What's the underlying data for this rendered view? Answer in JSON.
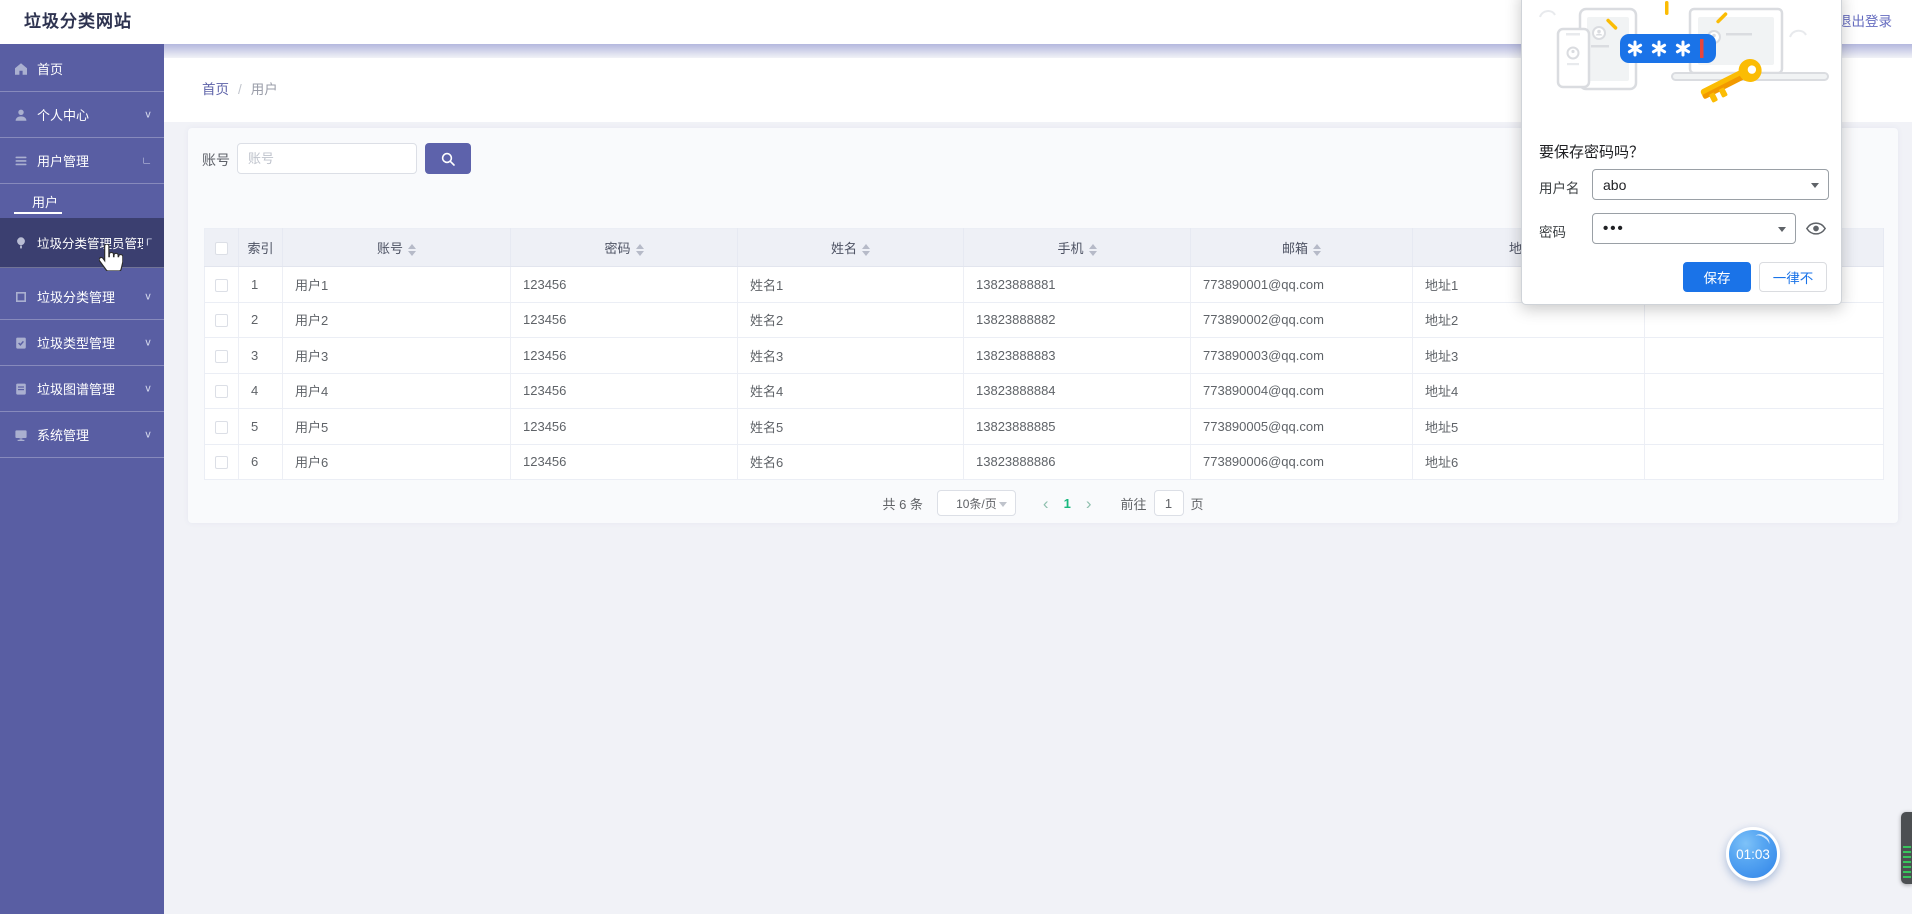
{
  "app": {
    "title": "垃圾分类网站",
    "logout_label": "退出登录"
  },
  "sidebar": {
    "items": [
      {
        "label": "首页",
        "icon": "home-icon"
      },
      {
        "label": "个人中心",
        "icon": "user-icon",
        "chevron": "∨"
      },
      {
        "label": "用户管理",
        "icon": "menu-icon",
        "chevron": "∟"
      },
      {
        "label": "用户",
        "sub": true,
        "active_sub": true
      },
      {
        "label": "垃圾分类管理员管理",
        "icon": "lamp-icon",
        "chevron": "Γ",
        "highlight": true
      },
      {
        "label": "垃圾分类管理",
        "icon": "square-icon",
        "chevron": "∨"
      },
      {
        "label": "垃圾类型管理",
        "icon": "clipcheck-icon",
        "chevron": "∨"
      },
      {
        "label": "垃圾图谱管理",
        "icon": "clipboard-icon",
        "chevron": "∨"
      },
      {
        "label": "系统管理",
        "icon": "monitor-icon",
        "chevron": "∨"
      }
    ]
  },
  "breadcrumb": {
    "items": [
      "首页",
      "用户"
    ],
    "separator": "/"
  },
  "search": {
    "label": "账号",
    "placeholder": "账号"
  },
  "table": {
    "columns": [
      {
        "key": "index",
        "label": "索引",
        "sortable": false
      },
      {
        "key": "account",
        "label": "账号",
        "sortable": true
      },
      {
        "key": "password",
        "label": "密码",
        "sortable": true
      },
      {
        "key": "name",
        "label": "姓名",
        "sortable": true
      },
      {
        "key": "phone",
        "label": "手机",
        "sortable": true
      },
      {
        "key": "email",
        "label": "邮箱",
        "sortable": true
      },
      {
        "key": "address",
        "label": "地址",
        "sortable": true
      },
      {
        "key": "extra",
        "label": "",
        "sortable": false
      }
    ],
    "rows": [
      {
        "index": "1",
        "account": "用户1",
        "password": "123456",
        "name": "姓名1",
        "phone": "13823888881",
        "email": "773890001@qq.com",
        "address": "地址1",
        "extra": ""
      },
      {
        "index": "2",
        "account": "用户2",
        "password": "123456",
        "name": "姓名2",
        "phone": "13823888882",
        "email": "773890002@qq.com",
        "address": "地址2",
        "extra": ""
      },
      {
        "index": "3",
        "account": "用户3",
        "password": "123456",
        "name": "姓名3",
        "phone": "13823888883",
        "email": "773890003@qq.com",
        "address": "地址3",
        "extra": ""
      },
      {
        "index": "4",
        "account": "用户4",
        "password": "123456",
        "name": "姓名4",
        "phone": "13823888884",
        "email": "773890004@qq.com",
        "address": "地址4",
        "extra": ""
      },
      {
        "index": "5",
        "account": "用户5",
        "password": "123456",
        "name": "姓名5",
        "phone": "13823888885",
        "email": "773890005@qq.com",
        "address": "地址5",
        "extra": ""
      },
      {
        "index": "6",
        "account": "用户6",
        "password": "123456",
        "name": "姓名6",
        "phone": "13823888886",
        "email": "773890006@qq.com",
        "address": "地址6",
        "extra": ""
      }
    ]
  },
  "pagination": {
    "total_label": "共 6 条",
    "page_size_label": "10条/页",
    "prev_icon": "‹",
    "next_icon": "›",
    "current_page": "1",
    "goto_label": "前往",
    "goto_value": "1",
    "page_unit_label": "页"
  },
  "save_password_dialog": {
    "title": "要保存密码吗？",
    "username_label": "用户名",
    "username_value": "abo",
    "password_label": "密码",
    "password_masked_value": "•••",
    "save_label": "保存",
    "never_label": "一律不",
    "illustration_pill_asterisks": 3
  },
  "timer": {
    "value": "01:03"
  },
  "colors": {
    "sidebar": "#595ea3",
    "sidebar_active": "#3b3f70",
    "accent_button": "#5d62ab",
    "dialog_primary": "#1a73e8",
    "pill_blue": "#1a73e8",
    "key_yellow": "#fbbc04",
    "pagination_active": "#18b87e",
    "timer_blue": "#3f94ee"
  }
}
